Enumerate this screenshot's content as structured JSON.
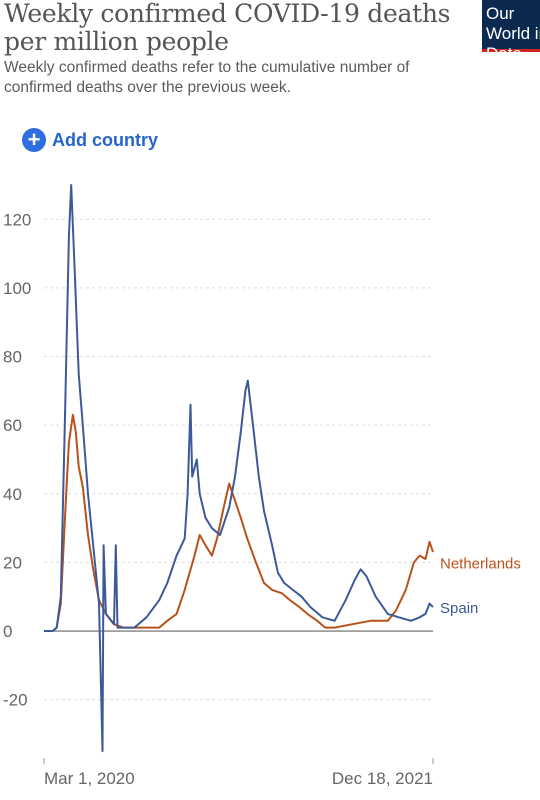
{
  "header": {
    "title": "Weekly confirmed COVID-19 deaths per million people",
    "subtitle": "Weekly confirmed deaths refer to the cumulative number of confirmed deaths over the previous week.",
    "logo_text": "Our World in Data"
  },
  "controls": {
    "add_country_label": "Add country",
    "add_icon": "plus-circle-icon"
  },
  "colors": {
    "spain": "#3c5a99",
    "netherlands": "#b8521c",
    "logo_bg": "#0c2a4f",
    "logo_accent": "#ce261e",
    "link": "#2465c9"
  },
  "chart_data": {
    "type": "line",
    "title": "Weekly confirmed COVID-19 deaths per million people",
    "xlabel": "",
    "ylabel": "",
    "x_tick_labels": [
      "Mar 1, 2020",
      "Dec 18, 2021"
    ],
    "x_range": [
      "2020-02-15",
      "2021-12-18"
    ],
    "ylim": [
      -37,
      130
    ],
    "y_ticks": [
      -20,
      0,
      20,
      40,
      60,
      80,
      100,
      120
    ],
    "grid": "horizontal dashed",
    "series": [
      {
        "name": "Netherlands",
        "color": "#b8521c",
        "points": [
          [
            "2020-02-15",
            0
          ],
          [
            "2020-03-01",
            0
          ],
          [
            "2020-03-08",
            1
          ],
          [
            "2020-03-15",
            8
          ],
          [
            "2020-03-22",
            32
          ],
          [
            "2020-03-29",
            55
          ],
          [
            "2020-04-05",
            63
          ],
          [
            "2020-04-10",
            58
          ],
          [
            "2020-04-15",
            48
          ],
          [
            "2020-04-22",
            42
          ],
          [
            "2020-05-01",
            28
          ],
          [
            "2020-05-10",
            18
          ],
          [
            "2020-05-20",
            9
          ],
          [
            "2020-06-01",
            5
          ],
          [
            "2020-06-15",
            2
          ],
          [
            "2020-07-01",
            1
          ],
          [
            "2020-08-01",
            1
          ],
          [
            "2020-09-01",
            1
          ],
          [
            "2020-09-15",
            3
          ],
          [
            "2020-10-01",
            5
          ],
          [
            "2020-10-15",
            12
          ],
          [
            "2020-11-01",
            22
          ],
          [
            "2020-11-10",
            28
          ],
          [
            "2020-11-20",
            25
          ],
          [
            "2020-12-01",
            22
          ],
          [
            "2020-12-10",
            27
          ],
          [
            "2020-12-20",
            35
          ],
          [
            "2020-12-31",
            43
          ],
          [
            "2021-01-10",
            38
          ],
          [
            "2021-01-20",
            33
          ],
          [
            "2021-01-31",
            27
          ],
          [
            "2021-02-15",
            20
          ],
          [
            "2021-03-01",
            14
          ],
          [
            "2021-03-15",
            12
          ],
          [
            "2021-04-01",
            11
          ],
          [
            "2021-04-15",
            9
          ],
          [
            "2021-05-01",
            7
          ],
          [
            "2021-05-15",
            5
          ],
          [
            "2021-06-01",
            3
          ],
          [
            "2021-06-15",
            1
          ],
          [
            "2021-07-01",
            1
          ],
          [
            "2021-08-01",
            2
          ],
          [
            "2021-09-01",
            3
          ],
          [
            "2021-10-01",
            3
          ],
          [
            "2021-10-15",
            6
          ],
          [
            "2021-11-01",
            12
          ],
          [
            "2021-11-15",
            20
          ],
          [
            "2021-11-25",
            22
          ],
          [
            "2021-12-05",
            21
          ],
          [
            "2021-12-12",
            26
          ],
          [
            "2021-12-18",
            23
          ]
        ]
      },
      {
        "name": "Spain",
        "color": "#3c5a99",
        "points": [
          [
            "2020-02-15",
            0
          ],
          [
            "2020-03-01",
            0
          ],
          [
            "2020-03-08",
            1
          ],
          [
            "2020-03-15",
            10
          ],
          [
            "2020-03-22",
            60
          ],
          [
            "2020-03-29",
            115
          ],
          [
            "2020-04-02",
            130
          ],
          [
            "2020-04-08",
            105
          ],
          [
            "2020-04-15",
            75
          ],
          [
            "2020-04-22",
            60
          ],
          [
            "2020-05-01",
            40
          ],
          [
            "2020-05-10",
            25
          ],
          [
            "2020-05-20",
            8
          ],
          [
            "2020-05-24",
            -20
          ],
          [
            "2020-05-26",
            -35
          ],
          [
            "2020-05-28",
            25
          ],
          [
            "2020-06-01",
            5
          ],
          [
            "2020-06-15",
            2
          ],
          [
            "2020-06-18",
            25
          ],
          [
            "2020-06-21",
            1
          ],
          [
            "2020-07-01",
            1
          ],
          [
            "2020-07-20",
            1
          ],
          [
            "2020-08-10",
            4
          ],
          [
            "2020-09-01",
            9
          ],
          [
            "2020-09-15",
            14
          ],
          [
            "2020-10-01",
            22
          ],
          [
            "2020-10-15",
            27
          ],
          [
            "2020-10-20",
            40
          ],
          [
            "2020-10-25",
            66
          ],
          [
            "2020-10-28",
            45
          ],
          [
            "2020-11-05",
            50
          ],
          [
            "2020-11-10",
            40
          ],
          [
            "2020-11-20",
            33
          ],
          [
            "2020-12-01",
            30
          ],
          [
            "2020-12-15",
            28
          ],
          [
            "2020-12-31",
            36
          ],
          [
            "2021-01-10",
            45
          ],
          [
            "2021-01-20",
            58
          ],
          [
            "2021-01-28",
            70
          ],
          [
            "2021-02-01",
            73
          ],
          [
            "2021-02-10",
            60
          ],
          [
            "2021-02-20",
            45
          ],
          [
            "2021-03-01",
            35
          ],
          [
            "2021-03-15",
            25
          ],
          [
            "2021-03-25",
            17
          ],
          [
            "2021-04-05",
            14
          ],
          [
            "2021-04-20",
            12
          ],
          [
            "2021-05-05",
            10
          ],
          [
            "2021-05-20",
            7
          ],
          [
            "2021-06-10",
            4
          ],
          [
            "2021-07-01",
            3
          ],
          [
            "2021-07-20",
            9
          ],
          [
            "2021-08-05",
            15
          ],
          [
            "2021-08-15",
            18
          ],
          [
            "2021-08-25",
            16
          ],
          [
            "2021-09-10",
            10
          ],
          [
            "2021-10-01",
            5
          ],
          [
            "2021-10-20",
            4
          ],
          [
            "2021-11-10",
            3
          ],
          [
            "2021-11-25",
            4
          ],
          [
            "2021-12-05",
            5
          ],
          [
            "2021-12-12",
            8
          ],
          [
            "2021-12-18",
            7
          ]
        ]
      }
    ]
  }
}
